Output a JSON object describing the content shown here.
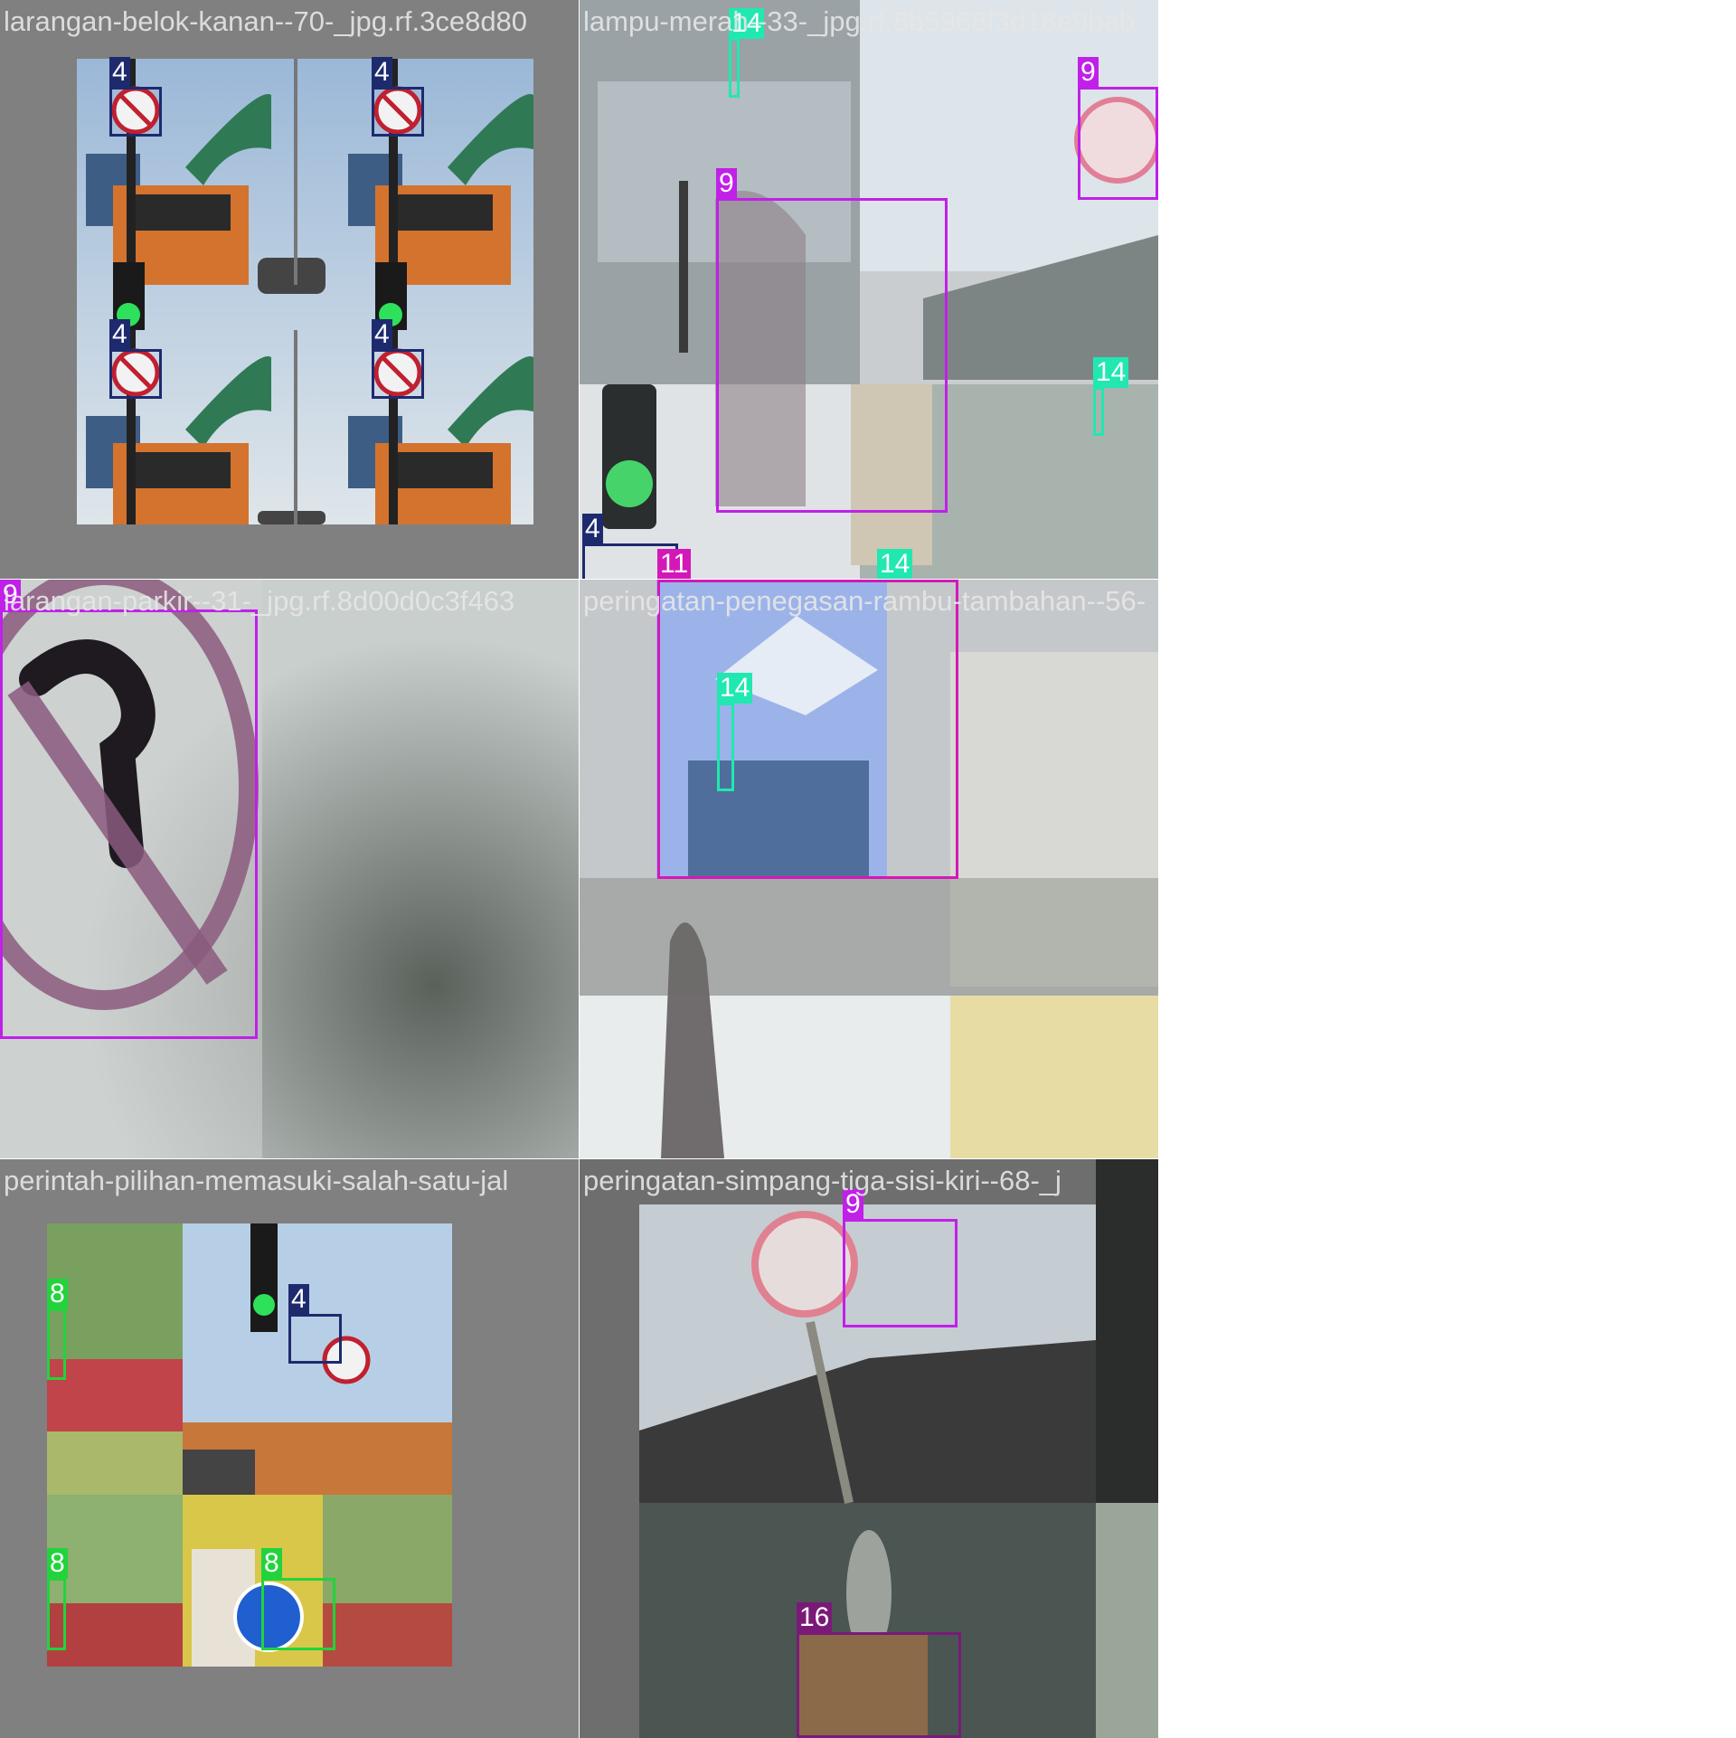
{
  "colors": {
    "class_4": "#1e2a6e",
    "class_8": "#22d33c",
    "class_9": "#c020e8",
    "class_11": "#d418b8",
    "class_14": "#20e8b0",
    "class_16": "#7a1a78",
    "mosaic_gray": "#808080"
  },
  "tiles": [
    {
      "title": "larangan-belok-kanan--70-_jpg.rf.3ce8d80",
      "boxes": [
        {
          "label": "4"
        },
        {
          "label": "4"
        },
        {
          "label": "4"
        },
        {
          "label": "4"
        }
      ]
    },
    {
      "title": "lampu-merah--33-_jpg.rf.8b5968f3d18e9bab",
      "boxes": [
        {
          "label": "14"
        },
        {
          "label": "9"
        },
        {
          "label": "9"
        },
        {
          "label": "14"
        },
        {
          "label": "4"
        },
        {
          "label": "11"
        },
        {
          "label": "14"
        }
      ]
    },
    {
      "title": "larangan-parkir--31-_jpg.rf.8d00d0c3f463",
      "boxes": [
        {
          "label": "9"
        }
      ]
    },
    {
      "title": "peringatan-penegasan-rambu-tambahan--56-",
      "boxes": [
        {
          "label": "14"
        }
      ]
    },
    {
      "title": "perintah-pilihan-memasuki-salah-satu-jal",
      "boxes": [
        {
          "label": "8"
        },
        {
          "label": "4"
        },
        {
          "label": "8"
        },
        {
          "label": "8"
        }
      ]
    },
    {
      "title": "peringatan-simpang-tiga-sisi-kiri--68-_j",
      "boxes": [
        {
          "label": "9"
        },
        {
          "label": "16"
        }
      ]
    }
  ]
}
